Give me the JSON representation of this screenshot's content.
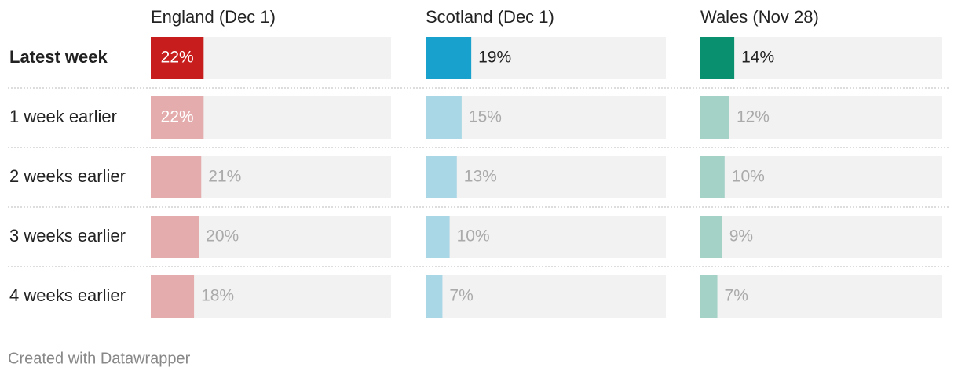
{
  "chart_data": {
    "type": "bar",
    "categories": [
      "Latest week",
      "1 week earlier",
      "2 weeks earlier",
      "3 weeks earlier",
      "4 weeks earlier"
    ],
    "xlim": [
      0,
      100
    ],
    "series": [
      {
        "name": "England (Dec 1)",
        "color": "#c71e1d",
        "values": [
          22,
          22,
          21,
          20,
          18
        ],
        "value_labels": [
          "22%",
          "22%",
          "21%",
          "20%",
          "18%"
        ]
      },
      {
        "name": "Scotland (Dec 1)",
        "color": "#18a1cd",
        "values": [
          19,
          15,
          13,
          10,
          7
        ],
        "value_labels": [
          "19%",
          "15%",
          "13%",
          "10%",
          "7%"
        ]
      },
      {
        "name": "Wales (Nov 28)",
        "color": "#09916f",
        "values": [
          14,
          12,
          10,
          9,
          7
        ],
        "value_labels": [
          "14%",
          "12%",
          "10%",
          "9%",
          "7%"
        ]
      }
    ],
    "credit": "Created with Datawrapper"
  }
}
